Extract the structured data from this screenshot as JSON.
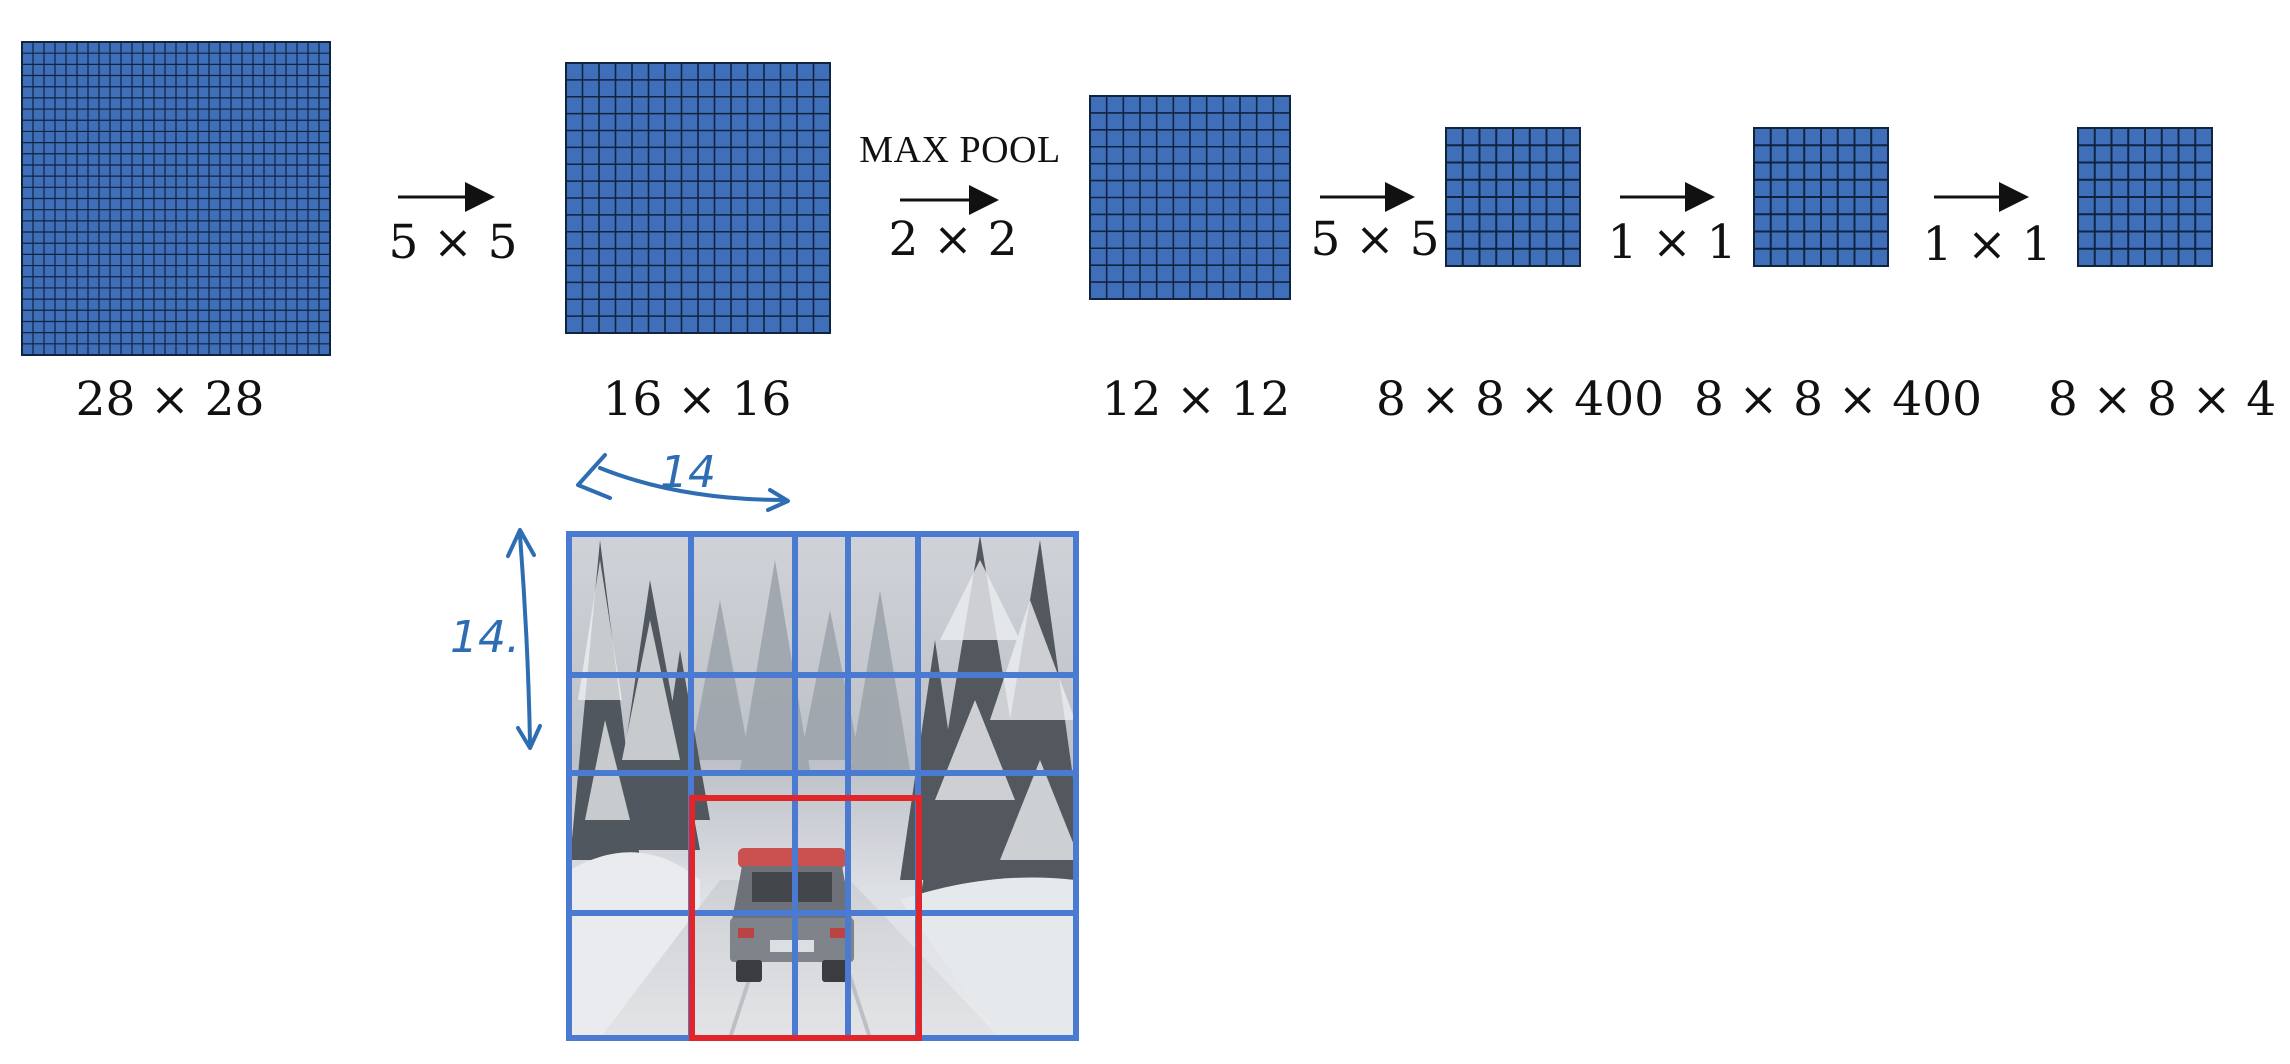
{
  "colors": {
    "map_fill": "#3f6fb9",
    "map_grid": "#10233f",
    "overlay_grid": "#4a7bd0",
    "highlight": "#e0262a",
    "annotation": "#2f6db3"
  },
  "pipeline": {
    "maps": [
      {
        "id": "map-28",
        "cells": 28,
        "label": "28 × 28"
      },
      {
        "id": "map-16",
        "cells": 16,
        "label": "16 × 16"
      },
      {
        "id": "map-12",
        "cells": 12,
        "label": "12 × 12"
      },
      {
        "id": "map-8a",
        "cells": 8,
        "label": "8 × 8 × 400"
      },
      {
        "id": "map-8b",
        "cells": 8,
        "label": "8 × 8 × 400"
      },
      {
        "id": "map-8c",
        "cells": 8,
        "label": "8 × 8 × 4"
      }
    ],
    "ops": [
      {
        "id": "op-1",
        "label": "5 × 5"
      },
      {
        "id": "op-2",
        "label": "2 × 2",
        "title": "MAX POOL"
      },
      {
        "id": "op-3",
        "label": "5 × 5"
      },
      {
        "id": "op-4",
        "label": "1 × 1"
      },
      {
        "id": "op-5",
        "label": "1 × 1"
      }
    ]
  },
  "photo": {
    "subject": "car on snowy forest road",
    "annotation_width": "14",
    "annotation_height": "14."
  }
}
